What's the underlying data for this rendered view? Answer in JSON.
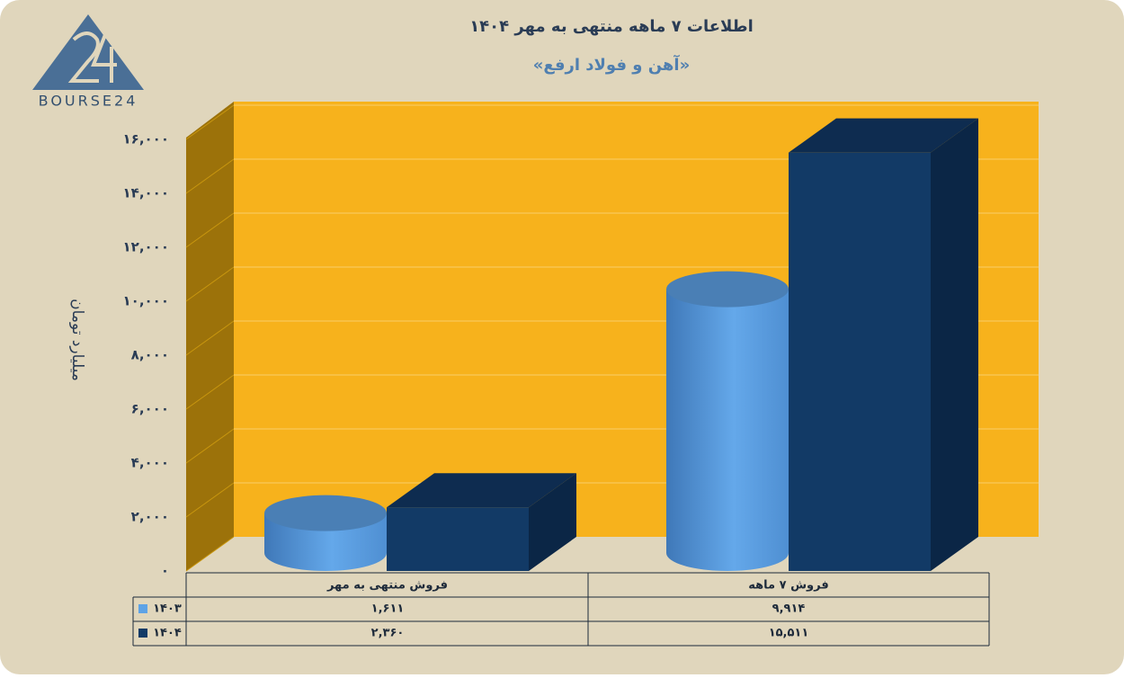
{
  "logo": {
    "text": "BOURSE24"
  },
  "chart_data": {
    "type": "bar3d",
    "title": "اطلاعات ۷ ماهه منتهی به مهر ۱۴۰۴",
    "subtitle": "«آهن و فولاد ارفع»",
    "y_label": "میلیارد تومان",
    "categories": [
      "فروش منتهی به مهر",
      "فروش  ۷  ماهه"
    ],
    "series": [
      {
        "name": "۱۴۰۳",
        "color": "#5ea3e6",
        "values": [
          1611,
          9914
        ],
        "value_labels": [
          "۱,۶۱۱",
          "۹,۹۱۴"
        ]
      },
      {
        "name": "۱۴۰۴",
        "color": "#123a66",
        "values": [
          2360,
          15511
        ],
        "value_labels": [
          "۲,۳۶۰",
          "۱۵,۵۱۱"
        ]
      }
    ],
    "ylim": [
      0,
      16000
    ],
    "yticks": [
      {
        "value": 0,
        "label": "۰"
      },
      {
        "value": 2000,
        "label": "۲,۰۰۰"
      },
      {
        "value": 4000,
        "label": "۴,۰۰۰"
      },
      {
        "value": 6000,
        "label": "۶,۰۰۰"
      },
      {
        "value": 8000,
        "label": "۸,۰۰۰"
      },
      {
        "value": 10000,
        "label": "۱۰,۰۰۰"
      },
      {
        "value": 12000,
        "label": "۱۲,۰۰۰"
      },
      {
        "value": 14000,
        "label": "۱۴,۰۰۰"
      },
      {
        "value": 16000,
        "label": "۱۶,۰۰۰"
      }
    ],
    "grid": true
  }
}
